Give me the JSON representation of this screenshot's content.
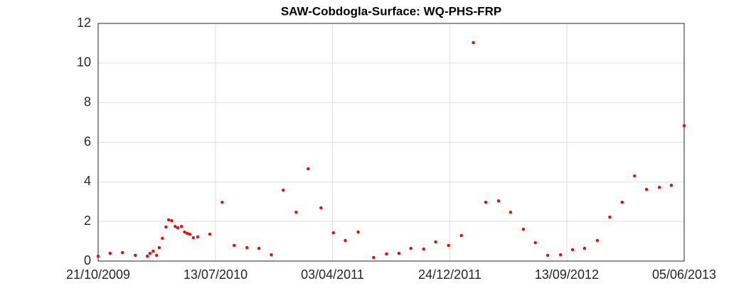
{
  "chart_data": {
    "type": "scatter",
    "title": "SAW-Cobdogla-Surface: WQ-PHS-FRP",
    "series": [
      {
        "color": "#ff0000",
        "x": [
          "21/10/2009",
          "17/11/2009",
          "15/12/2009",
          "13/01/2010",
          "09/02/2010",
          "15/02/2010",
          "22/02/2010",
          "02/03/2010",
          "08/03/2010",
          "15/03/2010",
          "23/03/2010",
          "29/03/2010",
          "05/04/2010",
          "13/04/2010",
          "19/04/2010",
          "27/04/2010",
          "04/05/2010",
          "10/05/2010",
          "16/05/2010",
          "24/05/2010",
          "03/06/2010",
          "30/06/2010",
          "28/07/2010",
          "24/08/2010",
          "22/09/2010",
          "19/10/2010",
          "16/11/2010",
          "13/12/2010",
          "11/01/2011",
          "07/02/2011",
          "08/03/2011",
          "05/04/2011",
          "02/05/2011",
          "31/05/2011",
          "05/07/2011",
          "03/08/2011",
          "31/08/2011",
          "27/09/2011",
          "26/10/2011",
          "22/11/2011",
          "21/12/2011",
          "19/01/2012",
          "15/02/2012",
          "14/03/2012",
          "12/04/2012",
          "09/05/2012",
          "07/06/2012",
          "04/07/2012",
          "01/08/2012",
          "30/08/2012",
          "26/09/2012",
          "23/10/2012",
          "21/11/2012",
          "19/12/2012",
          "16/01/2013",
          "13/02/2013",
          "12/03/2013",
          "10/04/2013",
          "07/05/2013",
          "05/06/2013"
        ],
        "values": [
          0.25,
          0.39,
          0.43,
          0.29,
          0.25,
          0.39,
          0.5,
          0.29,
          0.68,
          1.15,
          1.72,
          2.08,
          2.04,
          1.75,
          1.68,
          1.75,
          1.47,
          1.4,
          1.36,
          1.18,
          1.22,
          1.36,
          2.97,
          0.79,
          0.68,
          0.64,
          0.32,
          3.58,
          2.47,
          4.66,
          2.69,
          1.43,
          1.04,
          1.47,
          0.18,
          0.36,
          0.39,
          0.64,
          0.61,
          0.97,
          0.79,
          1.29,
          11.03,
          2.97,
          3.04,
          2.47,
          1.61,
          0.93,
          0.29,
          0.32,
          0.57,
          0.64,
          1.04,
          2.22,
          2.97,
          4.3,
          3.62,
          3.72,
          3.83,
          6.84
        ]
      }
    ],
    "xlim": [
      "21/10/2009",
      "05/06/2013"
    ],
    "xticks": [
      "21/10/2009",
      "13/07/2010",
      "03/04/2011",
      "24/12/2011",
      "13/09/2012",
      "05/06/2013"
    ],
    "ylim": [
      0,
      12
    ],
    "yticks": [
      0,
      2,
      4,
      6,
      8,
      10,
      12
    ],
    "grid": true
  }
}
